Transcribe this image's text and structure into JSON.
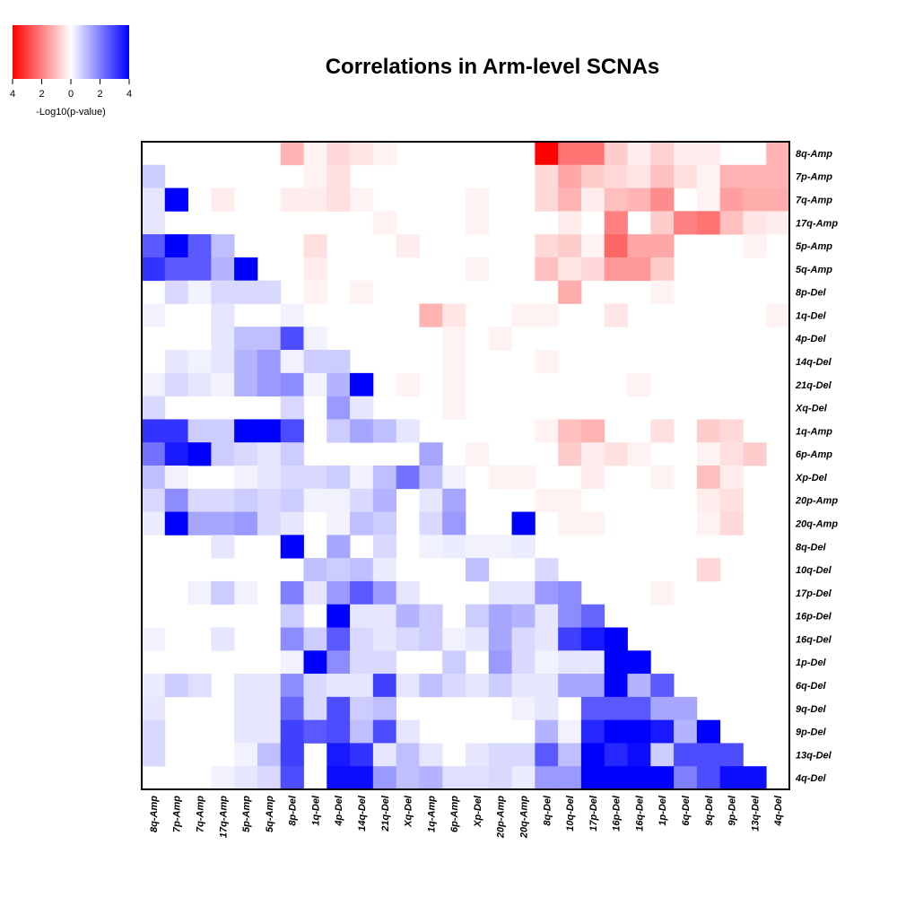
{
  "chart_data": {
    "type": "heatmap",
    "title": "Correlations in Arm-level SCNAs",
    "legend": {
      "label": "-Log10(p-value)",
      "ticks": [
        "4",
        "2",
        "0",
        "2",
        "4"
      ],
      "low_color": "#ff0000",
      "mid_color": "#ffffff",
      "high_color": "#0000ff",
      "placement": "top-left"
    },
    "colors": {
      "positive": "#0000ff",
      "negative": "#ff0000",
      "neutral": "#ffffff",
      "frame": "#000000"
    },
    "note": "Signed -log10(p-value): positive = blue (lower-left triangle), negative = red (upper-right triangle). Values estimated from color intensity, scale 0-4.",
    "x_labels": [
      "8q-Amp",
      "7p-Amp",
      "7q-Amp",
      "17q-Amp",
      "5p-Amp",
      "5q-Amp",
      "8p-Del",
      "1q-Del",
      "4p-Del",
      "14q-Del",
      "21q-Del",
      "Xq-Del",
      "1q-Amp",
      "6p-Amp",
      "Xp-Del",
      "20p-Amp",
      "20q-Amp",
      "8q-Del",
      "10q-Del",
      "17p-Del",
      "16p-Del",
      "16q-Del",
      "1p-Del",
      "6q-Del",
      "9q-Del",
      "9p-Del",
      "13q-Del",
      "4q-Del"
    ],
    "y_labels": [
      "8q-Amp",
      "7p-Amp",
      "7q-Amp",
      "17q-Amp",
      "5p-Amp",
      "5q-Amp",
      "8p-Del",
      "1q-Del",
      "4p-Del",
      "14q-Del",
      "21q-Del",
      "Xq-Del",
      "1q-Amp",
      "6p-Amp",
      "Xp-Del",
      "20p-Amp",
      "20q-Amp",
      "8q-Del",
      "10q-Del",
      "17p-Del",
      "16p-Del",
      "16q-Del",
      "1p-Del",
      "6q-Del",
      "9q-Del",
      "9p-Del",
      "13q-Del",
      "4q-Del"
    ],
    "matrix": [
      [
        0,
        0,
        0,
        0,
        0,
        0,
        -1.2,
        -0.2,
        -0.6,
        -0.4,
        -0.2,
        0,
        0,
        0,
        0,
        0,
        0,
        -4,
        -2.2,
        -2.2,
        -0.8,
        -0.3,
        -0.7,
        -0.3,
        -0.3,
        0,
        0,
        -1.2
      ],
      [
        0.8,
        0,
        0,
        0,
        0,
        0,
        0,
        -0.2,
        -0.5,
        0,
        0,
        0,
        0,
        0,
        0,
        0,
        0,
        -0.6,
        -1.4,
        -0.8,
        -0.6,
        -0.4,
        -1,
        -0.5,
        -0.2,
        -1.2,
        -1.2,
        -1.2
      ],
      [
        0.4,
        4,
        0,
        -0.3,
        0,
        0,
        -0.3,
        -0.3,
        -0.5,
        -0.2,
        0,
        0,
        0,
        0,
        -0.2,
        0,
        0,
        -0.6,
        -1.2,
        -0.3,
        -1,
        -1.2,
        -1.8,
        0,
        -0.2,
        -1.5,
        -1.3,
        -1.3
      ],
      [
        0.4,
        0,
        0,
        0,
        0,
        0,
        0,
        0,
        0,
        0,
        -0.2,
        0,
        0,
        0,
        -0.2,
        0,
        0,
        0,
        -0.3,
        0,
        -2,
        0,
        -0.8,
        -2,
        -2.2,
        -1,
        -0.4,
        -0.3
      ],
      [
        2.6,
        4,
        2.6,
        1,
        0,
        0,
        0,
        -0.5,
        0,
        0,
        0,
        -0.3,
        0,
        0,
        0,
        0,
        0,
        -0.6,
        -0.8,
        -0.2,
        -2.4,
        -1.4,
        -1.4,
        0,
        0,
        0,
        -0.2,
        0
      ],
      [
        3.2,
        2.6,
        2.6,
        1.2,
        4,
        0,
        0,
        -0.3,
        0,
        0,
        0,
        0,
        0,
        0,
        -0.2,
        0,
        0,
        -1,
        -0.4,
        -0.6,
        -1.6,
        -1.6,
        -0.8,
        0,
        0,
        0,
        0,
        0
      ],
      [
        0,
        0.6,
        0.2,
        0.6,
        0.6,
        0.6,
        0,
        -0.2,
        0,
        -0.2,
        0,
        0,
        0,
        0,
        0,
        0,
        0,
        0,
        -1.3,
        0,
        0,
        0,
        -0.2,
        0,
        0,
        0,
        0,
        0
      ],
      [
        0.2,
        0,
        0,
        0.4,
        0,
        0,
        0.2,
        0,
        0,
        0,
        0,
        0,
        -1.2,
        -0.4,
        0,
        0,
        -0.2,
        -0.2,
        0,
        0,
        -0.4,
        0,
        0,
        0,
        0,
        0,
        0,
        -0.2
      ],
      [
        0,
        0,
        0,
        0.4,
        1,
        1,
        2.8,
        0.2,
        0,
        0,
        0,
        0,
        0,
        -0.2,
        0,
        -0.2,
        0,
        0,
        0,
        0,
        0,
        0,
        0,
        0,
        0,
        0,
        0,
        0
      ],
      [
        0,
        0.4,
        0.2,
        0.4,
        1.2,
        1.6,
        0.2,
        0.8,
        0.8,
        0,
        0,
        0,
        0,
        -0.2,
        0,
        0,
        0,
        -0.2,
        0,
        0,
        0,
        0,
        0,
        0,
        0,
        0,
        0,
        0
      ],
      [
        0.2,
        0.6,
        0.4,
        0.2,
        1.2,
        1.6,
        1.8,
        0.2,
        1.2,
        4,
        0,
        -0.2,
        0,
        -0.2,
        0,
        0,
        0,
        0,
        0,
        0,
        0,
        -0.2,
        0,
        0,
        0,
        0,
        0,
        0
      ],
      [
        0.6,
        0,
        0,
        0,
        0,
        0,
        0.6,
        0,
        1.6,
        0.4,
        0,
        0,
        0,
        -0.2,
        0,
        0,
        0,
        0,
        0,
        0,
        0,
        0,
        0,
        0,
        0,
        0,
        0,
        0
      ],
      [
        3.2,
        3.2,
        0.8,
        0.8,
        4,
        4,
        2.8,
        0,
        0.8,
        1.4,
        1,
        0.4,
        0,
        0,
        0,
        0,
        0,
        -0.2,
        -1,
        -1.2,
        0,
        0,
        -0.5,
        0,
        -0.8,
        -0.6,
        0,
        0
      ],
      [
        2.2,
        3.6,
        4,
        0.8,
        0.6,
        0.4,
        0.8,
        0,
        0,
        0,
        0,
        0,
        1.4,
        0,
        -0.2,
        0,
        0,
        0,
        -0.8,
        -0.3,
        -0.5,
        -0.2,
        0,
        0,
        -0.2,
        -0.5,
        -0.8,
        0
      ],
      [
        1,
        0.2,
        0,
        0,
        0.2,
        0.4,
        0.6,
        0.6,
        0.8,
        0.2,
        1,
        2.2,
        1,
        0.2,
        0,
        -0.2,
        -0.2,
        0,
        0,
        -0.3,
        0,
        0,
        -0.2,
        0,
        -1,
        -0.3,
        0,
        0
      ],
      [
        0.6,
        1.8,
        0.6,
        0.6,
        0.8,
        0.6,
        0.8,
        0.2,
        0.2,
        0.6,
        1.2,
        0,
        0.4,
        1.4,
        0,
        0,
        0,
        -0.2,
        -0.2,
        0,
        0,
        0,
        0,
        0,
        -0.3,
        -0.5,
        0,
        0
      ],
      [
        0.3,
        4,
        1.4,
        1.4,
        1.6,
        0.6,
        0.4,
        0,
        0.2,
        1,
        0.8,
        0,
        0.6,
        1.6,
        0,
        0,
        4,
        0,
        -0.2,
        -0.2,
        0,
        0,
        0,
        0,
        -0.2,
        -0.6,
        0,
        0
      ],
      [
        0,
        0,
        0,
        0.4,
        0,
        0,
        4,
        0,
        1.4,
        0,
        0.6,
        0,
        0.2,
        0.3,
        0.2,
        0.2,
        0.3,
        0,
        0,
        0,
        0,
        0,
        0,
        0,
        0,
        0,
        0,
        0
      ],
      [
        0,
        0,
        0,
        0,
        0,
        0,
        0,
        1,
        0.8,
        1,
        0.3,
        0,
        0,
        0,
        1,
        0,
        0,
        0.6,
        0,
        0,
        0,
        0,
        0,
        0,
        -0.6,
        0,
        0,
        0
      ],
      [
        0,
        0,
        0.2,
        0.8,
        0.2,
        0,
        2,
        0.4,
        1.6,
        2.6,
        1.6,
        0.4,
        0,
        0,
        0,
        0.4,
        0.4,
        1.6,
        1.8,
        0,
        0,
        0,
        -0.2,
        0,
        0,
        0,
        0,
        0
      ],
      [
        0,
        0,
        0,
        0,
        0,
        0,
        0.8,
        0,
        4,
        0.4,
        0.4,
        1.2,
        0.8,
        0,
        0.8,
        1.4,
        1.2,
        0.4,
        1.8,
        2.4,
        0,
        0,
        0,
        0,
        0,
        0,
        0,
        0
      ],
      [
        0.2,
        0,
        0,
        0.4,
        0,
        0,
        1.8,
        0.8,
        2.6,
        0.6,
        0.4,
        0.6,
        0.8,
        0.2,
        0.4,
        1.4,
        0.6,
        0.4,
        3,
        3.6,
        4,
        0,
        0,
        0,
        0,
        0,
        0,
        0
      ],
      [
        0,
        0,
        0,
        0,
        0,
        0,
        0.2,
        4,
        1.8,
        0.6,
        0.6,
        0,
        0,
        0.8,
        0,
        1.6,
        0.6,
        0.2,
        0.4,
        0.4,
        4,
        4,
        0,
        0,
        0,
        0,
        0,
        0
      ],
      [
        0.3,
        0.8,
        0.5,
        0,
        0.4,
        0.4,
        1.8,
        0.6,
        0.4,
        0.4,
        3,
        0.4,
        1,
        0.6,
        0.4,
        0.8,
        0.4,
        0.4,
        1.4,
        1.4,
        4,
        1.2,
        2.6,
        0,
        0,
        0,
        0,
        0
      ],
      [
        0.4,
        0,
        0,
        0,
        0.4,
        0.4,
        2.4,
        0.6,
        2.8,
        0.8,
        1,
        0,
        0,
        0,
        0,
        0,
        0.2,
        0.4,
        0,
        2.6,
        2.6,
        2.6,
        1.4,
        1.4,
        0,
        0,
        0,
        0
      ],
      [
        0.6,
        0,
        0,
        0,
        0.4,
        0.4,
        3,
        2.6,
        2.8,
        1,
        2.8,
        0.4,
        0,
        0,
        0,
        0,
        0,
        1.2,
        0.2,
        3.4,
        4,
        4,
        3.6,
        1.2,
        4,
        0,
        0,
        0
      ],
      [
        0.6,
        0,
        0,
        0,
        0.2,
        1,
        3,
        0,
        3.6,
        3.2,
        0.4,
        1,
        0.4,
        0,
        0.4,
        0.6,
        0.6,
        2.6,
        1,
        4,
        3.4,
        3.8,
        0.8,
        2.8,
        2.8,
        2.8,
        0,
        0
      ],
      [
        0,
        0,
        0,
        0.2,
        0.4,
        0.6,
        2.8,
        0,
        3.8,
        3.8,
        1.6,
        1,
        1.2,
        0.5,
        0.5,
        0.6,
        0.3,
        1.6,
        1.6,
        4,
        4,
        4,
        4,
        2,
        2.8,
        3.8,
        3.8,
        0
      ]
    ]
  }
}
